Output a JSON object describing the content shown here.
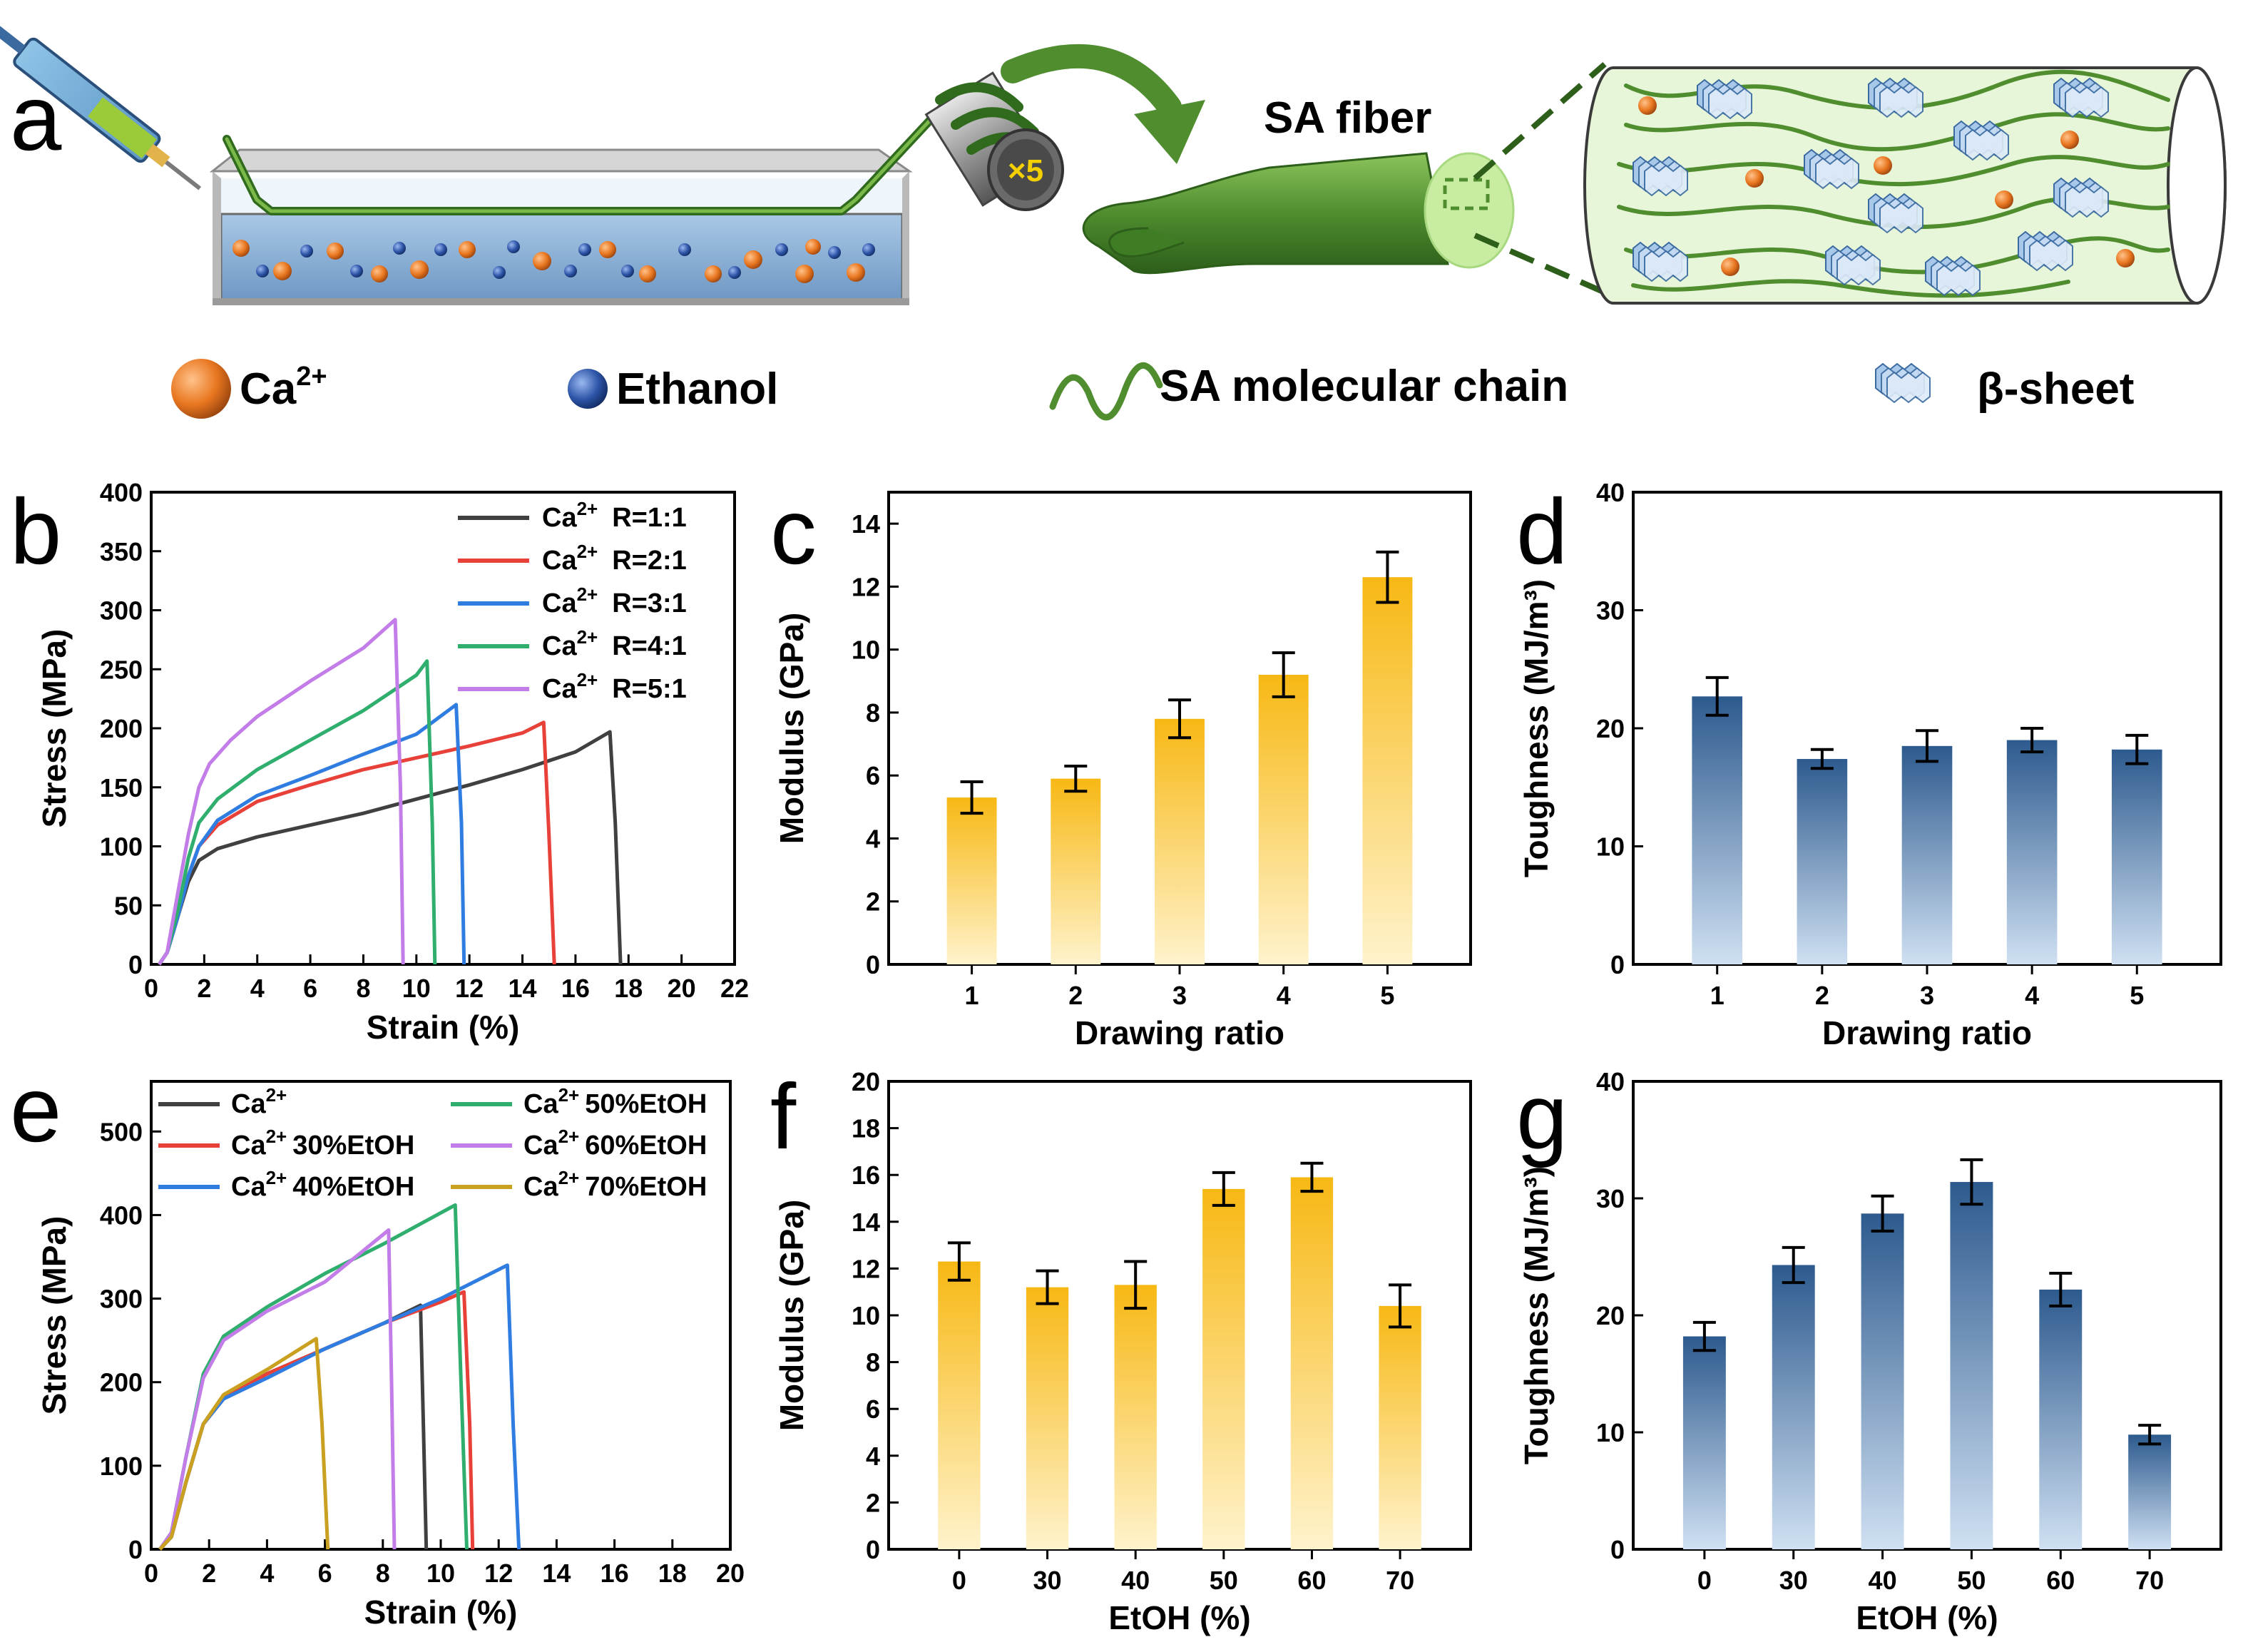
{
  "panel_a": {
    "letter": "a",
    "fiber_label": "SA fiber",
    "roller_label": "×5",
    "legend": [
      {
        "name": "ca-ion",
        "text": "Ca",
        "sup": "2+"
      },
      {
        "name": "ethanol",
        "text": "Ethanol",
        "sup": ""
      },
      {
        "name": "sa-chain",
        "text": "SA molecular chain",
        "sup": ""
      },
      {
        "name": "beta-sheet",
        "text": "β-sheet",
        "sup": ""
      }
    ]
  },
  "colors": {
    "ca_orange": "#e8761f",
    "ethanol_blue": "#2e55a8",
    "fiber_green": "#5a9a3a",
    "bar_yellow_top": "#f7b814",
    "bar_blue_top": "#2d5a8e"
  },
  "chart_data": [
    {
      "id": "b",
      "letter": "b",
      "type": "line",
      "xlabel": "Strain (%)",
      "ylabel": "Stress (MPa)",
      "xlim": [
        0,
        22
      ],
      "ylim": [
        0,
        400
      ],
      "xticks": [
        0,
        2,
        4,
        6,
        8,
        10,
        12,
        14,
        16,
        18,
        20,
        22
      ],
      "yticks": [
        0,
        50,
        100,
        150,
        200,
        250,
        300,
        350,
        400
      ],
      "legend_position": "top-right",
      "series": [
        {
          "name": "R=1:1",
          "prefix": "Ca",
          "sup": "2+",
          "color": "#404040",
          "points": [
            [
              0.3,
              0
            ],
            [
              0.6,
              10
            ],
            [
              1.0,
              40
            ],
            [
              1.4,
              70
            ],
            [
              1.8,
              88
            ],
            [
              2.5,
              98
            ],
            [
              4,
              108
            ],
            [
              6,
              118
            ],
            [
              8,
              128
            ],
            [
              10,
              140
            ],
            [
              12,
              152
            ],
            [
              14,
              165
            ],
            [
              16,
              180
            ],
            [
              17.3,
              197
            ],
            [
              17.5,
              120
            ],
            [
              17.7,
              0
            ]
          ]
        },
        {
          "name": "R=2:1",
          "prefix": "Ca",
          "sup": "2+",
          "color": "#e8413a",
          "points": [
            [
              0.3,
              0
            ],
            [
              0.6,
              10
            ],
            [
              1.0,
              40
            ],
            [
              1.4,
              75
            ],
            [
              1.8,
              100
            ],
            [
              2.5,
              118
            ],
            [
              4,
              138
            ],
            [
              6,
              152
            ],
            [
              8,
              165
            ],
            [
              10,
              175
            ],
            [
              12,
              185
            ],
            [
              14,
              196
            ],
            [
              14.8,
              205
            ],
            [
              15.0,
              110
            ],
            [
              15.2,
              0
            ]
          ]
        },
        {
          "name": "R=3:1",
          "prefix": "Ca",
          "sup": "2+",
          "color": "#2f7de1",
          "points": [
            [
              0.3,
              0
            ],
            [
              0.6,
              10
            ],
            [
              1.0,
              40
            ],
            [
              1.4,
              75
            ],
            [
              1.8,
              100
            ],
            [
              2.5,
              122
            ],
            [
              4,
              143
            ],
            [
              6,
              160
            ],
            [
              8,
              178
            ],
            [
              10,
              195
            ],
            [
              11.5,
              220
            ],
            [
              11.7,
              120
            ],
            [
              11.8,
              0
            ]
          ]
        },
        {
          "name": "R=4:1",
          "prefix": "Ca",
          "sup": "2+",
          "color": "#2fae6e",
          "points": [
            [
              0.3,
              0
            ],
            [
              0.6,
              10
            ],
            [
              1.0,
              45
            ],
            [
              1.4,
              90
            ],
            [
              1.8,
              120
            ],
            [
              2.5,
              140
            ],
            [
              4,
              165
            ],
            [
              6,
              190
            ],
            [
              8,
              215
            ],
            [
              10,
              245
            ],
            [
              10.4,
              257
            ],
            [
              10.6,
              120
            ],
            [
              10.7,
              0
            ]
          ]
        },
        {
          "name": "R=5:1",
          "prefix": "Ca",
          "sup": "2+",
          "color": "#c27de8",
          "points": [
            [
              0.3,
              0
            ],
            [
              0.6,
              10
            ],
            [
              1.0,
              60
            ],
            [
              1.4,
              110
            ],
            [
              1.8,
              150
            ],
            [
              2.2,
              170
            ],
            [
              3,
              190
            ],
            [
              4,
              210
            ],
            [
              6,
              240
            ],
            [
              8,
              268
            ],
            [
              9.2,
              292
            ],
            [
              9.4,
              150
            ],
            [
              9.5,
              0
            ]
          ]
        }
      ]
    },
    {
      "id": "c",
      "letter": "c",
      "type": "bar",
      "style": "yellow",
      "xlabel": "Drawing ratio",
      "ylabel": "Modulus (GPa)",
      "categories": [
        "1",
        "2",
        "3",
        "4",
        "5"
      ],
      "values": [
        5.3,
        5.9,
        7.8,
        9.2,
        12.3
      ],
      "errors": [
        0.5,
        0.4,
        0.6,
        0.7,
        0.8
      ],
      "ylim": [
        0,
        15
      ],
      "yticks": [
        0,
        2,
        4,
        6,
        8,
        10,
        12,
        14
      ]
    },
    {
      "id": "d",
      "letter": "d",
      "type": "bar",
      "style": "blue",
      "xlabel": "Drawing ratio",
      "ylabel": "Toughness (MJ/m³)",
      "categories": [
        "1",
        "2",
        "3",
        "4",
        "5"
      ],
      "values": [
        22.7,
        17.4,
        18.5,
        19.0,
        18.2
      ],
      "errors": [
        1.6,
        0.8,
        1.3,
        1.0,
        1.2
      ],
      "ylim": [
        0,
        40
      ],
      "yticks": [
        0,
        10,
        20,
        30,
        40
      ]
    },
    {
      "id": "e",
      "letter": "e",
      "type": "line",
      "xlabel": "Strain (%)",
      "ylabel": "Stress (MPa)",
      "xlim": [
        0,
        20
      ],
      "ylim": [
        0,
        560
      ],
      "xticks": [
        0,
        2,
        4,
        6,
        8,
        10,
        12,
        14,
        16,
        18,
        20
      ],
      "yticks": [
        0,
        100,
        200,
        300,
        400,
        500
      ],
      "legend_position": "top",
      "series": [
        {
          "name": "",
          "prefix": "Ca",
          "sup": "2+",
          "color": "#404040",
          "points": [
            [
              0.3,
              0
            ],
            [
              0.7,
              15
            ],
            [
              1.2,
              80
            ],
            [
              1.8,
              150
            ],
            [
              2.5,
              180
            ],
            [
              4,
              210
            ],
            [
              6,
              240
            ],
            [
              8,
              270
            ],
            [
              9.3,
              292
            ],
            [
              9.4,
              150
            ],
            [
              9.5,
              0
            ]
          ]
        },
        {
          "name": "30%EtOH",
          "prefix": "Ca",
          "sup": "2+",
          "color": "#e8413a",
          "points": [
            [
              0.3,
              0
            ],
            [
              0.7,
              15
            ],
            [
              1.2,
              80
            ],
            [
              1.8,
              150
            ],
            [
              2.5,
              180
            ],
            [
              4,
              210
            ],
            [
              6,
              240
            ],
            [
              8,
              270
            ],
            [
              10,
              296
            ],
            [
              10.8,
              308
            ],
            [
              11.0,
              150
            ],
            [
              11.1,
              0
            ]
          ]
        },
        {
          "name": "40%EtOH",
          "prefix": "Ca",
          "sup": "2+",
          "color": "#2f7de1",
          "points": [
            [
              0.3,
              0
            ],
            [
              0.7,
              15
            ],
            [
              1.2,
              80
            ],
            [
              1.8,
              150
            ],
            [
              2.5,
              180
            ],
            [
              4,
              205
            ],
            [
              6,
              240
            ],
            [
              8,
              270
            ],
            [
              10,
              300
            ],
            [
              12.3,
              340
            ],
            [
              12.5,
              150
            ],
            [
              12.7,
              0
            ]
          ]
        },
        {
          "name": "50%EtOH",
          "prefix": "Ca",
          "sup": "2+",
          "color": "#2fae6e",
          "points": [
            [
              0.3,
              0
            ],
            [
              0.7,
              20
            ],
            [
              1.2,
              110
            ],
            [
              1.8,
              210
            ],
            [
              2.5,
              255
            ],
            [
              4,
              290
            ],
            [
              6,
              330
            ],
            [
              8,
              365
            ],
            [
              10.5,
              412
            ],
            [
              10.7,
              200
            ],
            [
              10.9,
              0
            ]
          ]
        },
        {
          "name": "60%EtOH",
          "prefix": "Ca",
          "sup": "2+",
          "color": "#c27de8",
          "points": [
            [
              0.3,
              0
            ],
            [
              0.7,
              20
            ],
            [
              1.2,
              110
            ],
            [
              1.8,
              205
            ],
            [
              2.5,
              250
            ],
            [
              4,
              285
            ],
            [
              6,
              320
            ],
            [
              8.2,
              382
            ],
            [
              8.3,
              200
            ],
            [
              8.4,
              0
            ]
          ]
        },
        {
          "name": "70%EtOH",
          "prefix": "Ca",
          "sup": "2+",
          "color": "#c9a020",
          "points": [
            [
              0.3,
              0
            ],
            [
              0.7,
              15
            ],
            [
              1.2,
              80
            ],
            [
              1.8,
              150
            ],
            [
              2.5,
              185
            ],
            [
              4,
              215
            ],
            [
              5.7,
              252
            ],
            [
              5.9,
              150
            ],
            [
              6.1,
              0
            ]
          ]
        }
      ]
    },
    {
      "id": "f",
      "letter": "f",
      "type": "bar",
      "style": "yellow",
      "xlabel": "EtOH (%)",
      "ylabel": "Modulus (GPa)",
      "categories": [
        "0",
        "30",
        "40",
        "50",
        "60",
        "70"
      ],
      "values": [
        12.3,
        11.2,
        11.3,
        15.4,
        15.9,
        10.4
      ],
      "errors": [
        0.8,
        0.7,
        1.0,
        0.7,
        0.6,
        0.9
      ],
      "ylim": [
        0,
        20
      ],
      "yticks": [
        0,
        2,
        4,
        6,
        8,
        10,
        12,
        14,
        16,
        18,
        20
      ]
    },
    {
      "id": "g",
      "letter": "g",
      "type": "bar",
      "style": "blue",
      "xlabel": "EtOH (%)",
      "ylabel": "Toughness (MJ/m³)",
      "categories": [
        "0",
        "30",
        "40",
        "50",
        "60",
        "70"
      ],
      "values": [
        18.2,
        24.3,
        28.7,
        31.4,
        22.2,
        9.8
      ],
      "errors": [
        1.2,
        1.5,
        1.5,
        1.9,
        1.4,
        0.8
      ],
      "ylim": [
        0,
        40
      ],
      "yticks": [
        0,
        10,
        20,
        30,
        40
      ]
    }
  ]
}
